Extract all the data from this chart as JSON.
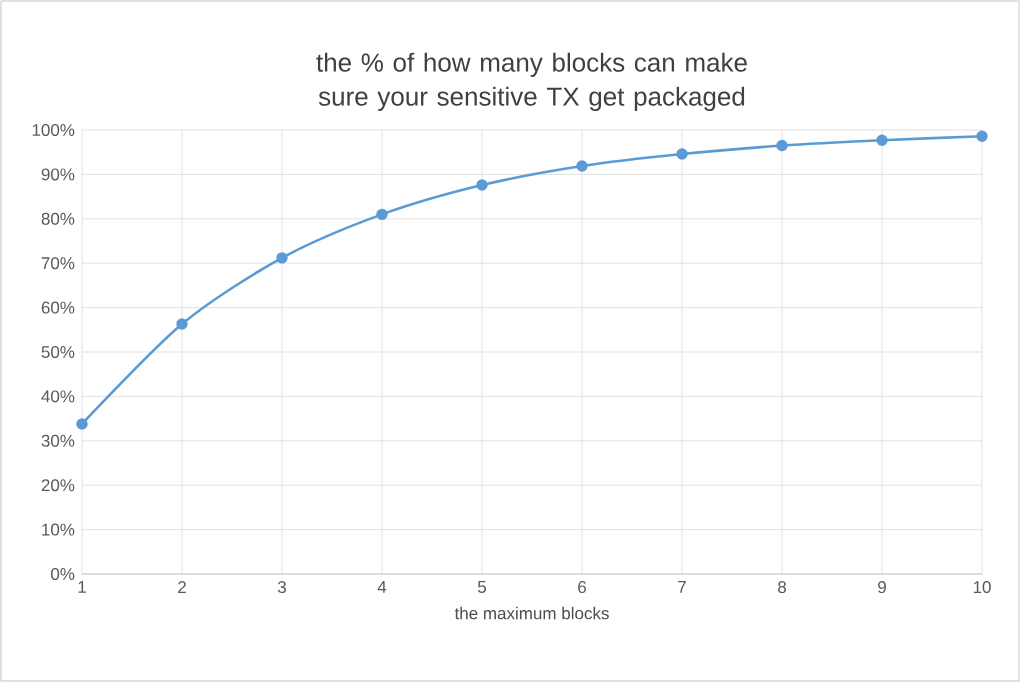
{
  "chart_data": {
    "type": "line",
    "title": "the % of how many blocks can make sure your sensitive TX get packaged",
    "xlabel": "the maximum blocks",
    "x": [
      1,
      2,
      3,
      4,
      5,
      6,
      7,
      8,
      9,
      10
    ],
    "series": [
      {
        "color": "#5b9bd5",
        "values": [
          33.8,
          56.3,
          71.2,
          81,
          87.6,
          91.9,
          94.6,
          96.5,
          97.7,
          98.6
        ]
      }
    ],
    "xlim": [
      1,
      10
    ],
    "xticks": [
      1,
      2,
      3,
      4,
      5,
      6,
      7,
      8,
      9,
      10
    ],
    "ylim": [
      0,
      100
    ],
    "yticks": [
      {
        "value": 0,
        "label": "0%"
      },
      {
        "value": 10,
        "label": "10%"
      },
      {
        "value": 20,
        "label": "20%"
      },
      {
        "value": 30,
        "label": "30%"
      },
      {
        "value": 40,
        "label": "40%"
      },
      {
        "value": 50,
        "label": "50%"
      },
      {
        "value": 60,
        "label": "60%"
      },
      {
        "value": 70,
        "label": "70%"
      },
      {
        "value": 80,
        "label": "80%"
      },
      {
        "value": 90,
        "label": "90%"
      },
      {
        "value": 100,
        "label": "100%"
      }
    ],
    "grid": true,
    "marker": "circle",
    "line_style": "solid"
  }
}
